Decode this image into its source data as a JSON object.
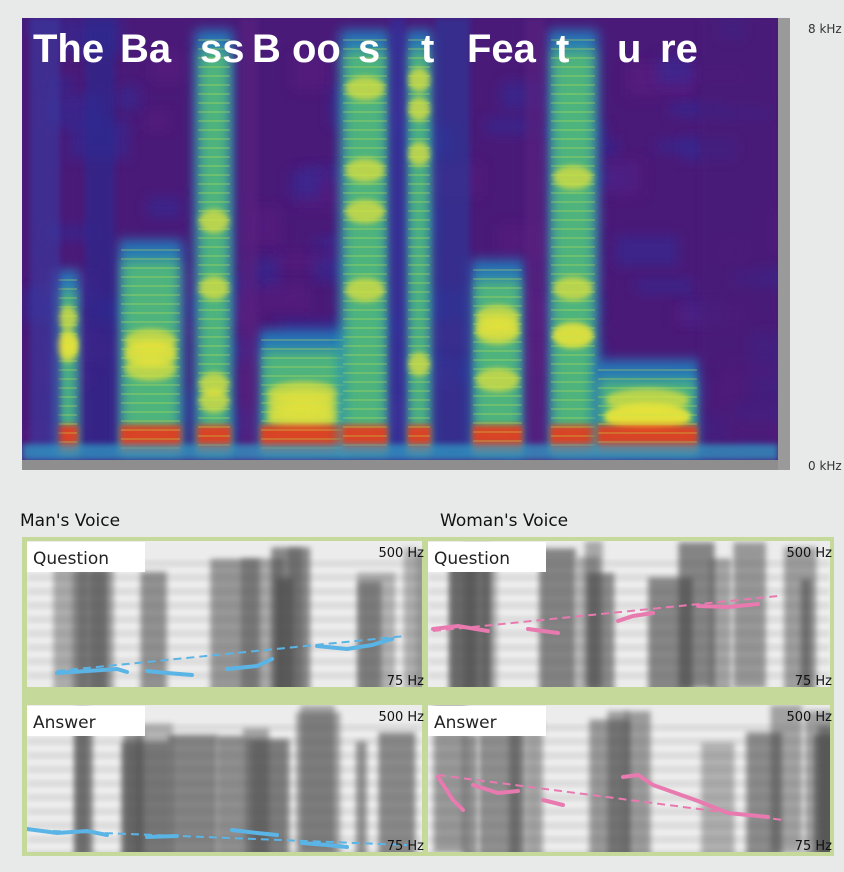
{
  "spectrogram": {
    "title_segments": [
      "The",
      "Ba",
      "ss",
      "B",
      "oo",
      "s",
      "t",
      "Fea",
      "t",
      "u",
      "re"
    ],
    "top_label": "8 kHz",
    "bottom_label": "0 kHz"
  },
  "panels": [
    {
      "title": "Man's Voice",
      "rows": [
        {
          "label": "Question",
          "top": "500 Hz",
          "bottom": "75 Hz"
        },
        {
          "label": "Answer",
          "top": "500 Hz",
          "bottom": "75 Hz"
        }
      ]
    },
    {
      "title": "Woman's Voice",
      "rows": [
        {
          "label": "Question",
          "top": "500 Hz",
          "bottom": "75 Hz"
        },
        {
          "label": "Answer",
          "top": "500 Hz",
          "bottom": "75 Hz"
        }
      ]
    }
  ]
}
